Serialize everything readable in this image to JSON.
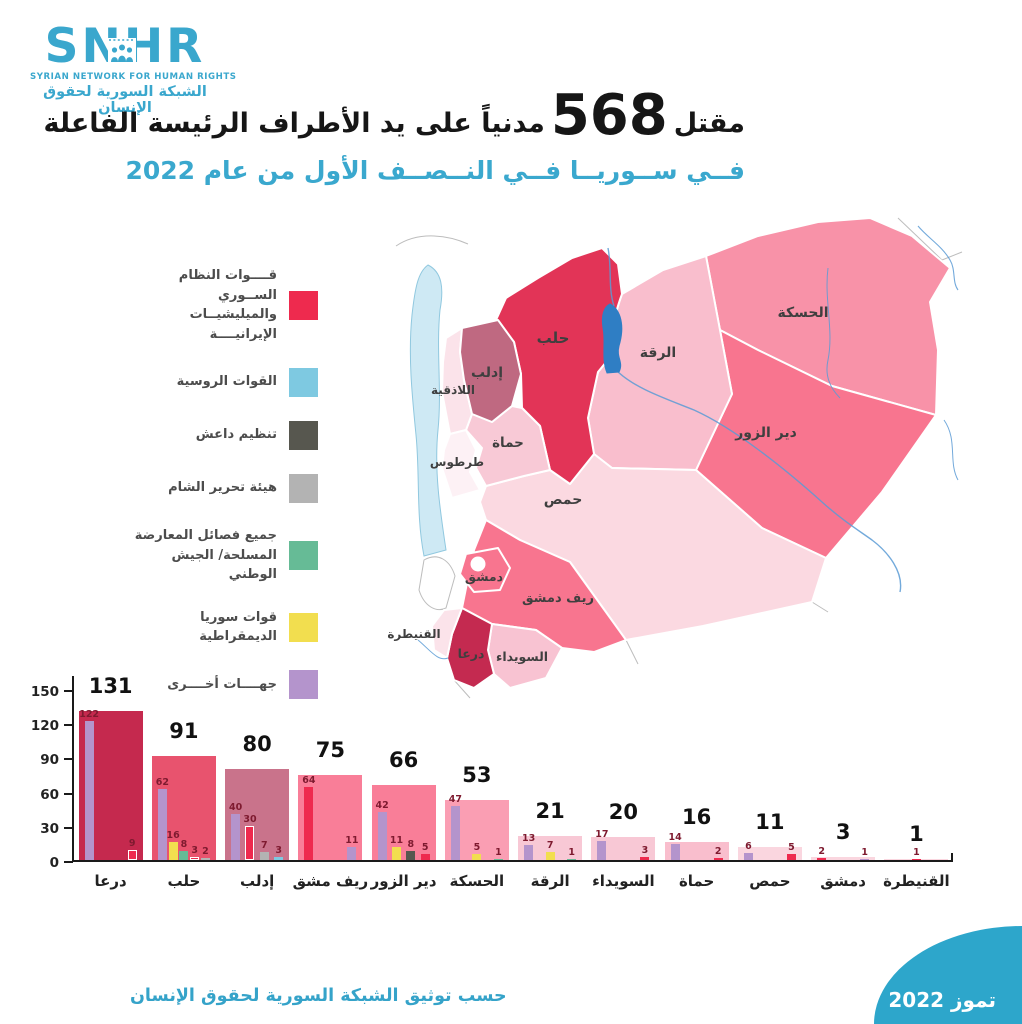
{
  "logo": {
    "acronym": "SNHR",
    "name_en": "SYRIAN NETWORK FOR HUMAN RIGHTS",
    "name_ar": "الشبكة السورية لحقوق الإنسان",
    "brand_color": "#3AA7CD"
  },
  "title": {
    "prefix": "مقتل",
    "count": "568",
    "suffix": "مدنياً على يد الأطراف الرئيسة الفاعلة",
    "line2": "فــي ســوريــا فــي النــصــف الأول من عام 2022"
  },
  "parties": {
    "regime": {
      "label": "قــــوات النظام الســوري والميليشيــات الإيرانيــــة",
      "color": "#EE2A4E"
    },
    "russia": {
      "label": "القوات الروسية",
      "color": "#7EC9E1"
    },
    "isis": {
      "label": "تنظيم داعش",
      "color": "#57574F"
    },
    "hts": {
      "label": "هيئة تحرير الشام",
      "color": "#B3B3B3"
    },
    "opposition": {
      "label": "جميع فصائل المعارضة المسلحة/ الجيش الوطني",
      "color": "#66BB96"
    },
    "sdf": {
      "label": "قوات سوريا الديمقراطية",
      "color": "#F2DE4F"
    },
    "other": {
      "label": "جهــــات أخــــرى",
      "color": "#B494CC"
    }
  },
  "legend_order": [
    "regime",
    "russia",
    "isis",
    "hts",
    "opposition",
    "sdf",
    "other"
  ],
  "map": {
    "provinces": [
      {
        "name": "حلب",
        "color": "#E23457"
      },
      {
        "name": "إدلب",
        "color": "#BF6981"
      },
      {
        "name": "اللاذقية",
        "color": "#FBE3EA"
      },
      {
        "name": "طرطوس",
        "color": "#FDF1F5"
      },
      {
        "name": "حماة",
        "color": "#F8C9D6"
      },
      {
        "name": "الرقة",
        "color": "#F9BECD"
      },
      {
        "name": "الحسكة",
        "color": "#F892A8"
      },
      {
        "name": "دير الزور",
        "color": "#F8758F"
      },
      {
        "name": "حمص",
        "color": "#FBD9E1"
      },
      {
        "name": "ريف دمشق",
        "color": "#F8758F"
      },
      {
        "name": "دمشق",
        "color": "#F8758F"
      },
      {
        "name": "القنيطرة",
        "color": "#FBE3EA"
      },
      {
        "name": "درعا",
        "color": "#C42A50"
      },
      {
        "name": "السويداء",
        "color": "#F8C3D2"
      }
    ]
  },
  "chart_data": {
    "type": "bar",
    "title": "مقتل 568 مدنياً على يد الأطراف الرئيسة الفاعلة في سوريا في النصف الأول من عام 2022",
    "total": 568,
    "ylim": [
      0,
      150
    ],
    "yticks": [
      0,
      30,
      60,
      90,
      120,
      150
    ],
    "grid": false,
    "legend_position": "left",
    "groups": [
      {
        "category": "درعا",
        "total": 131,
        "color": "#C5294E",
        "breakdown": [
          {
            "party": "other",
            "value": 122
          },
          {
            "party": "regime",
            "value": 9,
            "outlined": true
          }
        ]
      },
      {
        "category": "حلب",
        "total": 91,
        "color": "#E8536E",
        "breakdown": [
          {
            "party": "other",
            "value": 62
          },
          {
            "party": "sdf",
            "value": 16
          },
          {
            "party": "opposition",
            "value": 8
          },
          {
            "party": "regime",
            "value": 3,
            "outlined": true
          },
          {
            "party": "hts",
            "value": 2
          }
        ]
      },
      {
        "category": "إدلب",
        "total": 80,
        "color": "#C9738B",
        "breakdown": [
          {
            "party": "other",
            "value": 40
          },
          {
            "party": "regime",
            "value": 30,
            "outlined": true
          },
          {
            "party": "hts",
            "value": 7
          },
          {
            "party": "russia",
            "value": 3
          }
        ]
      },
      {
        "category": "ريف مشق",
        "total": 75,
        "color": "#F97E98",
        "breakdown": [
          {
            "party": "regime",
            "value": 64
          },
          {
            "party": "other",
            "value": 11
          }
        ]
      },
      {
        "category": "دير الزور",
        "total": 66,
        "color": "#F97E98",
        "breakdown": [
          {
            "party": "other",
            "value": 42
          },
          {
            "party": "sdf",
            "value": 11
          },
          {
            "party": "isis",
            "value": 8
          },
          {
            "party": "regime",
            "value": 5
          }
        ]
      },
      {
        "category": "الحسكة",
        "total": 53,
        "color": "#FA9EB3",
        "breakdown": [
          {
            "party": "other",
            "value": 47
          },
          {
            "party": "sdf",
            "value": 5
          },
          {
            "party": "opposition",
            "value": 1
          }
        ]
      },
      {
        "category": "الرقة",
        "total": 21,
        "color": "#F8C8D5",
        "breakdown": [
          {
            "party": "other",
            "value": 13
          },
          {
            "party": "sdf",
            "value": 7
          },
          {
            "party": "opposition",
            "value": 1
          }
        ]
      },
      {
        "category": "السويداء",
        "total": 20,
        "color": "#F8C8D5",
        "breakdown": [
          {
            "party": "other",
            "value": 17
          },
          {
            "party": "regime",
            "value": 3
          }
        ]
      },
      {
        "category": "حماة",
        "total": 16,
        "color": "#F9BECD",
        "breakdown": [
          {
            "party": "other",
            "value": 14
          },
          {
            "party": "regime",
            "value": 2
          }
        ]
      },
      {
        "category": "حمص",
        "total": 11,
        "color": "#FAD6DF",
        "breakdown": [
          {
            "party": "other",
            "value": 6
          },
          {
            "party": "regime",
            "value": 5
          }
        ]
      },
      {
        "category": "دمشق",
        "total": 3,
        "color": "#FAD6DF",
        "breakdown": [
          {
            "party": "regime",
            "value": 2
          },
          {
            "party": "other",
            "value": 1
          }
        ]
      },
      {
        "category": "القنيطرة",
        "total": 1,
        "color": "#FAD6DF",
        "breakdown": [
          {
            "party": "regime",
            "value": 1
          }
        ]
      }
    ]
  },
  "footer": {
    "source": "حسب توثيق الشبكة السورية لحقوق الإنسان",
    "date": "تموز 2022",
    "corner_color": "#2DA6CB"
  }
}
